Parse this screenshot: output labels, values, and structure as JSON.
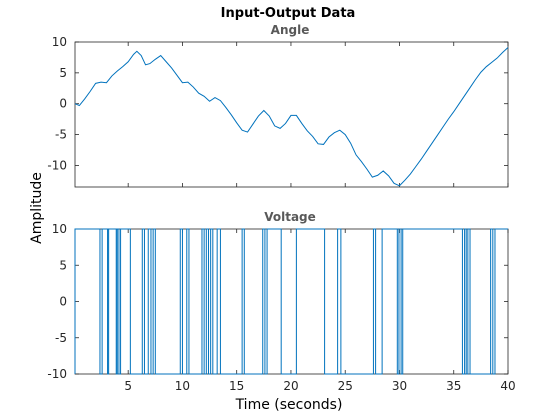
{
  "chart_data": {
    "type": "line",
    "title": "Input-Output Data",
    "xlabel": "Time (seconds)",
    "ylabel": "Amplitude",
    "colors": {
      "line": "#0072BD",
      "axis": "#262626",
      "grid_box": "#262626"
    },
    "grid": false,
    "xlim": [
      0.1,
      40
    ],
    "x_ticks": [
      5,
      10,
      15,
      20,
      25,
      30,
      35,
      40
    ],
    "panels": [
      {
        "subtitle": "Angle",
        "ylim": [
          -13.5,
          10
        ],
        "y_ticks": [
          -10,
          -5,
          0,
          5,
          10
        ],
        "series": [
          {
            "kind": "line",
            "x": [
              0.1,
              0.5,
              1.0,
              1.5,
              2.0,
              2.5,
              3.0,
              3.5,
              4.0,
              4.5,
              5.0,
              5.5,
              5.8,
              6.2,
              6.6,
              7.0,
              7.5,
              8.0,
              8.5,
              9.0,
              9.5,
              10.0,
              10.5,
              11.0,
              11.5,
              12.0,
              12.5,
              13.0,
              13.5,
              14.0,
              14.5,
              15.0,
              15.5,
              16.0,
              16.5,
              17.0,
              17.5,
              18.0,
              18.5,
              19.0,
              19.5,
              20.0,
              20.5,
              21.0,
              21.5,
              22.0,
              22.5,
              23.0,
              23.5,
              24.0,
              24.5,
              25.0,
              25.5,
              26.0,
              26.5,
              27.0,
              27.5,
              28.0,
              28.5,
              29.0,
              29.5,
              30.0,
              30.5,
              31.0,
              31.5,
              32.0,
              32.5,
              33.0,
              33.5,
              34.0,
              34.5,
              35.0,
              35.5,
              36.0,
              36.5,
              37.0,
              37.5,
              38.0,
              38.5,
              39.0,
              39.5,
              40.0
            ],
            "y": [
              0.0,
              -0.3,
              0.8,
              2.0,
              3.3,
              3.5,
              3.4,
              4.5,
              5.3,
              6.0,
              6.8,
              8.0,
              8.5,
              7.8,
              6.3,
              6.5,
              7.2,
              7.8,
              6.8,
              5.8,
              4.6,
              3.4,
              3.5,
              2.7,
              1.7,
              1.2,
              0.4,
              1.0,
              0.5,
              -0.6,
              -1.8,
              -3.1,
              -4.3,
              -4.6,
              -3.3,
              -2.0,
              -1.1,
              -2.0,
              -3.6,
              -4.0,
              -3.2,
              -1.9,
              -1.9,
              -3.2,
              -4.4,
              -5.3,
              -6.5,
              -6.6,
              -5.4,
              -4.7,
              -4.3,
              -5.0,
              -6.4,
              -8.3,
              -9.4,
              -10.6,
              -11.9,
              -11.6,
              -10.9,
              -11.7,
              -12.9,
              -13.3,
              -12.4,
              -11.4,
              -10.2,
              -9.0,
              -7.7,
              -6.4,
              -5.1,
              -3.8,
              -2.5,
              -1.3,
              0.0,
              1.3,
              2.6,
              3.9,
              5.1,
              6.0,
              6.7,
              7.4,
              8.3,
              9.1
            ]
          }
        ]
      },
      {
        "subtitle": "Voltage",
        "ylim": [
          -10,
          10
        ],
        "y_ticks": [
          -10,
          -5,
          0,
          5,
          10
        ],
        "series": [
          {
            "kind": "square",
            "initial_level": -10,
            "levels": [
              -10,
              10
            ],
            "switch_times": [
              0.1,
              2.4,
              2.6,
              3.1,
              3.2,
              3.9,
              4.0,
              4.15,
              4.3,
              5.2,
              6.3,
              6.5,
              6.85,
              7.1,
              7.3,
              7.5,
              9.8,
              10.0,
              10.4,
              10.6,
              11.8,
              12.0,
              12.2,
              12.4,
              12.6,
              12.8,
              13.2,
              13.5,
              15.5,
              15.7,
              17.4,
              17.6,
              17.8,
              19.1,
              20.5,
              23.1,
              24.3,
              24.6,
              27.6,
              27.8,
              28.4,
              29.8,
              29.95,
              30.15,
              30.3,
              35.8,
              36.0,
              36.15,
              36.3,
              36.5,
              38.4,
              38.6,
              38.8
            ]
          }
        ]
      }
    ]
  }
}
